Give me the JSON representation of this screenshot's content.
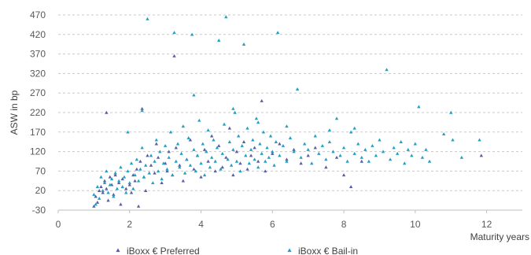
{
  "chart_data": {
    "type": "scatter",
    "title": "",
    "xlabel": "Maturity years",
    "ylabel": "ASW in bp",
    "xlim": [
      0,
      13
    ],
    "ylim": [
      -30,
      470
    ],
    "x_ticks": [
      "0",
      "2",
      "4",
      "6",
      "8",
      "10",
      "12"
    ],
    "y_ticks": [
      "-30",
      "20",
      "70",
      "120",
      "170",
      "220",
      "270",
      "320",
      "370",
      "420",
      "470"
    ],
    "grid": "horizontal dashed",
    "legend_position": "bottom",
    "series": [
      {
        "name": "iBoxx € Preferred",
        "color": "#5b5ea6",
        "marker": "triangle",
        "points": [
          [
            1.0,
            -20
          ],
          [
            1.05,
            5
          ],
          [
            1.1,
            -10
          ],
          [
            1.15,
            20
          ],
          [
            1.2,
            30
          ],
          [
            1.25,
            15
          ],
          [
            1.3,
            45
          ],
          [
            1.35,
            25
          ],
          [
            1.4,
            -5
          ],
          [
            1.45,
            55
          ],
          [
            1.5,
            35
          ],
          [
            1.55,
            10
          ],
          [
            1.6,
            60
          ],
          [
            1.7,
            40
          ],
          [
            1.75,
            -15
          ],
          [
            1.8,
            50
          ],
          [
            1.9,
            25
          ],
          [
            2.0,
            35
          ],
          [
            2.05,
            15
          ],
          [
            2.1,
            60
          ],
          [
            2.15,
            45
          ],
          [
            2.2,
            75
          ],
          [
            2.25,
            -20
          ],
          [
            2.3,
            95
          ],
          [
            2.4,
            55
          ],
          [
            2.45,
            20
          ],
          [
            2.5,
            110
          ],
          [
            2.6,
            85
          ],
          [
            2.7,
            65
          ],
          [
            2.75,
            140
          ],
          [
            2.8,
            105
          ],
          [
            2.9,
            40
          ],
          [
            3.0,
            90
          ],
          [
            3.05,
            70
          ],
          [
            3.1,
            120
          ],
          [
            3.2,
            60
          ],
          [
            3.25,
            365
          ],
          [
            3.3,
            130
          ],
          [
            3.4,
            85
          ],
          [
            3.5,
            45
          ],
          [
            3.6,
            100
          ],
          [
            3.7,
            150
          ],
          [
            3.8,
            75
          ],
          [
            3.9,
            110
          ],
          [
            4.0,
            55
          ],
          [
            4.1,
            125
          ],
          [
            4.2,
            95
          ],
          [
            4.3,
            160
          ],
          [
            4.4,
            70
          ],
          [
            4.5,
            135
          ],
          [
            4.6,
            80
          ],
          [
            4.7,
            105
          ],
          [
            4.8,
            180
          ],
          [
            4.9,
            60
          ],
          [
            5.0,
            120
          ],
          [
            5.1,
            90
          ],
          [
            5.2,
            145
          ],
          [
            5.3,
            75
          ],
          [
            5.4,
            110
          ],
          [
            5.5,
            130
          ],
          [
            5.6,
            95
          ],
          [
            5.7,
            250
          ],
          [
            5.8,
            70
          ],
          [
            6.0,
            115
          ],
          [
            6.2,
            140
          ],
          [
            6.4,
            100
          ],
          [
            6.6,
            125
          ],
          [
            6.8,
            90
          ],
          [
            7.0,
            110
          ],
          [
            7.2,
            130
          ],
          [
            7.5,
            80
          ],
          [
            7.8,
            105
          ],
          [
            8.0,
            60
          ],
          [
            8.2,
            30
          ],
          [
            8.5,
            95
          ],
          [
            11.85,
            110
          ],
          [
            1.35,
            220
          ],
          [
            2.35,
            230
          ]
        ]
      },
      {
        "name": "iBoxx € Bail-in",
        "color": "#21a0c4",
        "marker": "triangle",
        "points": [
          [
            1.0,
            10
          ],
          [
            1.05,
            -15
          ],
          [
            1.1,
            30
          ],
          [
            1.15,
            0
          ],
          [
            1.2,
            55
          ],
          [
            1.25,
            20
          ],
          [
            1.3,
            40
          ],
          [
            1.35,
            70
          ],
          [
            1.4,
            15
          ],
          [
            1.45,
            35
          ],
          [
            1.5,
            50
          ],
          [
            1.55,
            5
          ],
          [
            1.6,
            65
          ],
          [
            1.65,
            25
          ],
          [
            1.7,
            45
          ],
          [
            1.75,
            80
          ],
          [
            1.8,
            30
          ],
          [
            1.85,
            55
          ],
          [
            1.9,
            15
          ],
          [
            1.95,
            70
          ],
          [
            2.0,
            40
          ],
          [
            2.05,
            90
          ],
          [
            2.1,
            25
          ],
          [
            2.15,
            60
          ],
          [
            2.2,
            100
          ],
          [
            2.25,
            45
          ],
          [
            2.3,
            75
          ],
          [
            2.35,
            130
          ],
          [
            2.4,
            55
          ],
          [
            2.45,
            85
          ],
          [
            2.5,
            460
          ],
          [
            2.55,
            65
          ],
          [
            2.6,
            110
          ],
          [
            2.65,
            40
          ],
          [
            2.7,
            95
          ],
          [
            2.75,
            150
          ],
          [
            2.8,
            70
          ],
          [
            2.85,
            120
          ],
          [
            2.9,
            50
          ],
          [
            2.95,
            90
          ],
          [
            3.0,
            135
          ],
          [
            3.05,
            75
          ],
          [
            3.1,
            105
          ],
          [
            3.15,
            170
          ],
          [
            3.2,
            60
          ],
          [
            3.25,
            425
          ],
          [
            3.3,
            95
          ],
          [
            3.35,
            140
          ],
          [
            3.4,
            80
          ],
          [
            3.45,
            115
          ],
          [
            3.5,
            185
          ],
          [
            3.55,
            65
          ],
          [
            3.6,
            100
          ],
          [
            3.65,
            155
          ],
          [
            3.7,
            85
          ],
          [
            3.75,
            420
          ],
          [
            3.8,
            125
          ],
          [
            3.85,
            70
          ],
          [
            3.9,
            110
          ],
          [
            3.95,
            200
          ],
          [
            4.0,
            90
          ],
          [
            4.05,
            140
          ],
          [
            4.1,
            60
          ],
          [
            4.15,
            120
          ],
          [
            4.2,
            175
          ],
          [
            4.25,
            80
          ],
          [
            4.3,
            105
          ],
          [
            4.35,
            150
          ],
          [
            4.4,
            95
          ],
          [
            4.45,
            130
          ],
          [
            4.5,
            405
          ],
          [
            4.55,
            75
          ],
          [
            4.6,
            115
          ],
          [
            4.65,
            190
          ],
          [
            4.7,
            465
          ],
          [
            4.75,
            100
          ],
          [
            4.8,
            145
          ],
          [
            4.85,
            85
          ],
          [
            4.9,
            125
          ],
          [
            4.95,
            220
          ],
          [
            5.0,
            95
          ],
          [
            5.05,
            160
          ],
          [
            5.1,
            70
          ],
          [
            5.15,
            135
          ],
          [
            5.2,
            395
          ],
          [
            5.25,
            110
          ],
          [
            5.3,
            180
          ],
          [
            5.35,
            90
          ],
          [
            5.4,
            125
          ],
          [
            5.45,
            150
          ],
          [
            5.5,
            100
          ],
          [
            5.55,
            205
          ],
          [
            5.6,
            80
          ],
          [
            5.65,
            140
          ],
          [
            5.7,
            115
          ],
          [
            5.75,
            170
          ],
          [
            5.8,
            95
          ],
          [
            5.85,
            130
          ],
          [
            5.9,
            105
          ],
          [
            5.95,
            160
          ],
          [
            6.0,
            120
          ],
          [
            6.05,
            85
          ],
          [
            6.1,
            145
          ],
          [
            6.15,
            425
          ],
          [
            6.2,
            110
          ],
          [
            6.3,
            135
          ],
          [
            6.4,
            95
          ],
          [
            6.5,
            155
          ],
          [
            6.6,
            120
          ],
          [
            6.7,
            280
          ],
          [
            6.8,
            105
          ],
          [
            6.9,
            140
          ],
          [
            7.0,
            125
          ],
          [
            7.1,
            90
          ],
          [
            7.2,
            160
          ],
          [
            7.3,
            115
          ],
          [
            7.4,
            135
          ],
          [
            7.5,
            100
          ],
          [
            7.6,
            145
          ],
          [
            7.7,
            120
          ],
          [
            7.8,
            205
          ],
          [
            7.9,
            110
          ],
          [
            8.0,
            130
          ],
          [
            8.1,
            95
          ],
          [
            8.2,
            170
          ],
          [
            8.3,
            115
          ],
          [
            8.4,
            140
          ],
          [
            8.5,
            105
          ],
          [
            8.6,
            125
          ],
          [
            8.7,
            95
          ],
          [
            8.8,
            135
          ],
          [
            8.9,
            110
          ],
          [
            9.0,
            150
          ],
          [
            9.1,
            120
          ],
          [
            9.2,
            330
          ],
          [
            9.3,
            100
          ],
          [
            9.4,
            130
          ],
          [
            9.5,
            115
          ],
          [
            9.6,
            145
          ],
          [
            9.7,
            90
          ],
          [
            9.8,
            125
          ],
          [
            9.9,
            110
          ],
          [
            10.0,
            140
          ],
          [
            10.1,
            235
          ],
          [
            10.2,
            105
          ],
          [
            10.3,
            125
          ],
          [
            10.4,
            95
          ],
          [
            10.8,
            165
          ],
          [
            11.0,
            220
          ],
          [
            11.05,
            150
          ],
          [
            11.3,
            105
          ],
          [
            11.8,
            150
          ],
          [
            1.95,
            170
          ],
          [
            2.35,
            225
          ],
          [
            3.8,
            265
          ],
          [
            4.9,
            230
          ],
          [
            5.6,
            195
          ],
          [
            6.4,
            185
          ],
          [
            7.6,
            175
          ],
          [
            8.3,
            180
          ]
        ]
      }
    ]
  }
}
